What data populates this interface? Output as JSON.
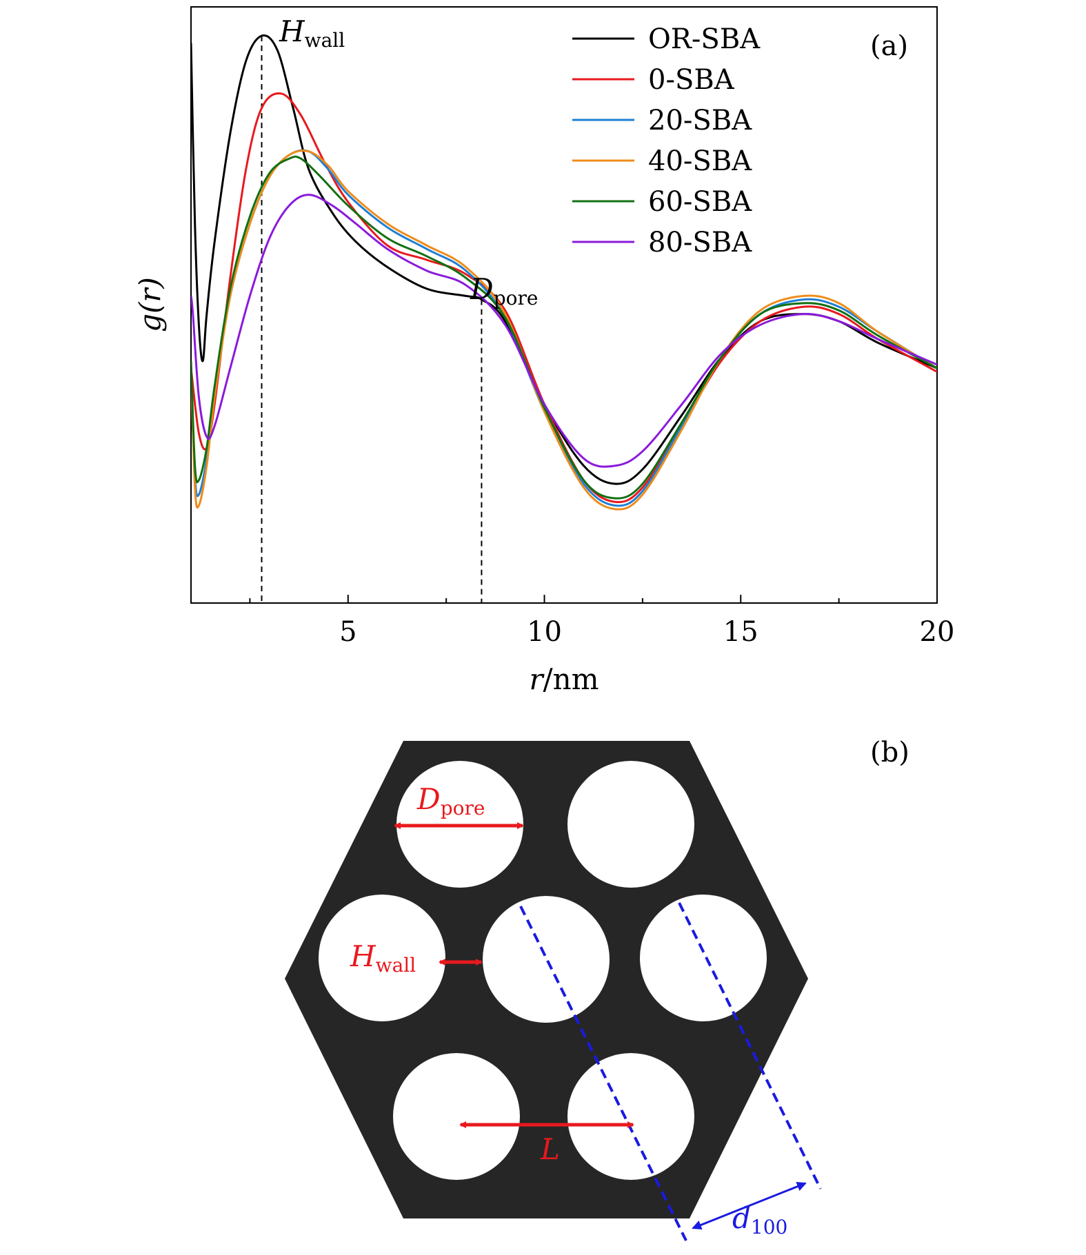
{
  "chart_data": {
    "type": "line",
    "panel_label": "(a)",
    "title": "",
    "xlabel": {
      "var": "r",
      "unit": "nm"
    },
    "ylabel": "g(r)",
    "xlim": [
      1,
      20
    ],
    "ylim": [
      -0.75,
      0.9
    ],
    "xticks": [
      5,
      10,
      15,
      20
    ],
    "xtick_labels": [
      "5",
      "10",
      "15",
      "20"
    ],
    "minor_xticks": [
      2.5,
      7.5,
      12.5,
      17.5
    ],
    "yticks_shown": false,
    "grid": false,
    "legend_position": "top-right",
    "annotations": [
      {
        "base": "H",
        "sub": "wall",
        "x": 2.8,
        "y_top": 0.82,
        "dashed_vline": true
      },
      {
        "base": "D",
        "sub": "pore",
        "x": 8.4,
        "y_top": 0.09,
        "dashed_vline": true
      }
    ],
    "series": [
      {
        "name": "OR-SBA",
        "color": "#000000",
        "x": [
          1.0,
          1.1,
          1.2,
          1.3,
          1.4,
          1.6,
          2.0,
          2.4,
          2.8,
          3.2,
          3.6,
          4.0,
          4.6,
          5.2,
          6.0,
          7.0,
          8.0,
          8.4,
          9.0,
          10.0,
          11.0,
          11.8,
          12.5,
          13.5,
          14.5,
          15.5,
          16.6,
          17.5,
          18.5,
          20.0
        ],
        "y": [
          0.8,
          0.3,
          0.02,
          -0.08,
          0.05,
          0.25,
          0.55,
          0.75,
          0.82,
          0.78,
          0.62,
          0.45,
          0.33,
          0.25,
          0.18,
          0.12,
          0.1,
          0.09,
          0.03,
          -0.2,
          -0.37,
          -0.42,
          -0.38,
          -0.23,
          -0.07,
          0.03,
          0.05,
          0.03,
          -0.03,
          -0.1
        ]
      },
      {
        "name": "0-SBA",
        "color": "#e8191e",
        "x": [
          1.0,
          1.2,
          1.4,
          1.6,
          2.0,
          2.4,
          2.8,
          3.3,
          3.8,
          4.4,
          5.0,
          6.0,
          7.0,
          8.0,
          9.0,
          10.0,
          11.0,
          11.8,
          12.5,
          13.5,
          14.5,
          15.5,
          16.6,
          17.5,
          18.5,
          20.0
        ],
        "y": [
          -0.1,
          -0.28,
          -0.32,
          -0.2,
          0.15,
          0.45,
          0.62,
          0.66,
          0.6,
          0.47,
          0.36,
          0.24,
          0.2,
          0.16,
          0.06,
          -0.2,
          -0.41,
          -0.47,
          -0.43,
          -0.26,
          -0.08,
          0.03,
          0.07,
          0.05,
          -0.02,
          -0.11
        ]
      },
      {
        "name": "20-SBA",
        "color": "#1f7fd4",
        "x": [
          1.0,
          1.1,
          1.2,
          1.4,
          1.6,
          2.0,
          2.5,
          3.0,
          3.5,
          4.0,
          4.5,
          5.0,
          6.0,
          7.0,
          8.0,
          9.0,
          10.0,
          11.0,
          11.8,
          12.5,
          13.5,
          14.5,
          15.5,
          16.6,
          17.5,
          18.5,
          20.0
        ],
        "y": [
          -0.1,
          -0.4,
          -0.45,
          -0.35,
          -0.17,
          0.1,
          0.3,
          0.43,
          0.49,
          0.5,
          0.45,
          0.38,
          0.29,
          0.23,
          0.17,
          0.04,
          -0.22,
          -0.42,
          -0.48,
          -0.44,
          -0.26,
          -0.07,
          0.05,
          0.09,
          0.07,
          0.0,
          -0.1
        ]
      },
      {
        "name": "40-SBA",
        "color": "#ee8c1c",
        "x": [
          1.0,
          1.1,
          1.2,
          1.4,
          1.6,
          2.0,
          2.5,
          3.0,
          3.5,
          4.0,
          4.5,
          5.0,
          6.0,
          7.0,
          8.0,
          9.0,
          10.0,
          11.0,
          11.8,
          12.5,
          13.5,
          14.5,
          15.5,
          16.6,
          17.5,
          18.5,
          20.0
        ],
        "y": [
          -0.1,
          -0.43,
          -0.48,
          -0.37,
          -0.18,
          0.1,
          0.3,
          0.43,
          0.49,
          0.5,
          0.46,
          0.39,
          0.3,
          0.24,
          0.18,
          0.05,
          -0.22,
          -0.43,
          -0.49,
          -0.45,
          -0.27,
          -0.07,
          0.06,
          0.1,
          0.08,
          0.0,
          -0.1
        ]
      },
      {
        "name": "60-SBA",
        "color": "#127012",
        "x": [
          1.0,
          1.1,
          1.2,
          1.4,
          1.6,
          2.0,
          2.5,
          3.0,
          3.5,
          3.8,
          4.3,
          5.0,
          6.0,
          7.0,
          8.0,
          9.0,
          10.0,
          11.0,
          11.8,
          12.5,
          13.5,
          14.5,
          15.5,
          16.6,
          17.5,
          18.5,
          20.0
        ],
        "y": [
          -0.08,
          -0.37,
          -0.41,
          -0.32,
          -0.15,
          0.12,
          0.32,
          0.44,
          0.48,
          0.48,
          0.43,
          0.35,
          0.26,
          0.21,
          0.15,
          0.04,
          -0.21,
          -0.41,
          -0.46,
          -0.42,
          -0.25,
          -0.07,
          0.05,
          0.08,
          0.06,
          -0.01,
          -0.1
        ]
      },
      {
        "name": "80-SBA",
        "color": "#8a1adb",
        "x": [
          1.0,
          1.05,
          1.2,
          1.4,
          1.6,
          2.0,
          2.5,
          3.0,
          3.5,
          4.0,
          4.6,
          5.2,
          6.0,
          7.0,
          8.0,
          9.0,
          10.0,
          11.0,
          11.8,
          12.5,
          13.5,
          14.5,
          15.5,
          16.6,
          17.5,
          18.5,
          20.0
        ],
        "y": [
          0.1,
          0.05,
          -0.18,
          -0.29,
          -0.26,
          -0.1,
          0.1,
          0.26,
          0.35,
          0.38,
          0.35,
          0.3,
          0.23,
          0.17,
          0.13,
          0.02,
          -0.2,
          -0.35,
          -0.37,
          -0.33,
          -0.2,
          -0.06,
          0.02,
          0.05,
          0.03,
          -0.02,
          -0.09
        ]
      }
    ]
  },
  "schematic": {
    "panel_label": "(b)",
    "labels": {
      "d_pore": {
        "base": "D",
        "sub": "pore"
      },
      "h_wall": {
        "base": "H",
        "sub": "wall"
      },
      "center_distance": {
        "base": "L"
      },
      "d100": {
        "base": "d",
        "sub": "100"
      }
    },
    "colors": {
      "matrix": "#262626",
      "pore": "#ffffff",
      "dimension": "#e8191e",
      "plane": "#1a1ae0"
    }
  }
}
